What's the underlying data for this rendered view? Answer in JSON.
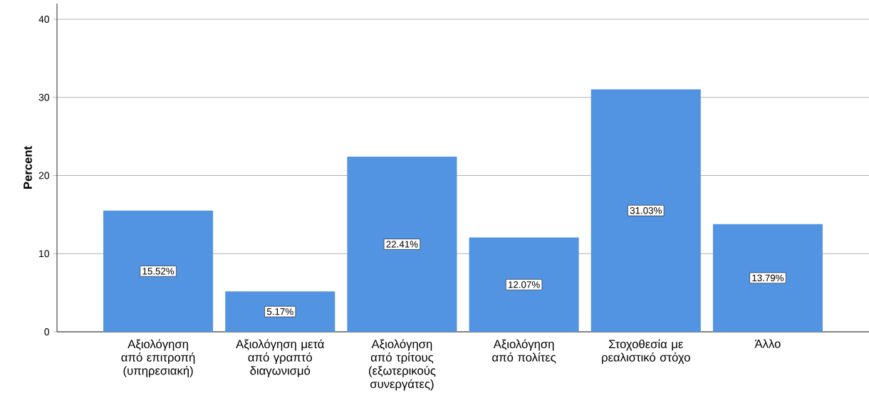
{
  "chart_data": {
    "type": "bar",
    "ylabel": "Percent",
    "categories": [
      "Αξιολόγηση από επιτροπή (υπηρεσιακή)",
      "Αξιολόγηση μετά από γραπτό διαγωνισμό",
      "Αξιολόγηση από τρίτους (εξωτερικούς συνεργάτες)",
      "Αξιολόγηση από πολίτες",
      "Στοχοθεσία με ρεαλιστικό στόχο",
      "Άλλο"
    ],
    "values": [
      15.52,
      5.17,
      22.41,
      12.07,
      31.03,
      13.79
    ],
    "value_labels": [
      "15.52%",
      "5.17%",
      "22.41%",
      "12.07%",
      "31.03%",
      "13.79%"
    ],
    "color": "#5294e2",
    "ylim": [
      0,
      42
    ],
    "yticks": [
      0,
      10,
      20,
      30,
      40
    ],
    "grid": "y"
  }
}
